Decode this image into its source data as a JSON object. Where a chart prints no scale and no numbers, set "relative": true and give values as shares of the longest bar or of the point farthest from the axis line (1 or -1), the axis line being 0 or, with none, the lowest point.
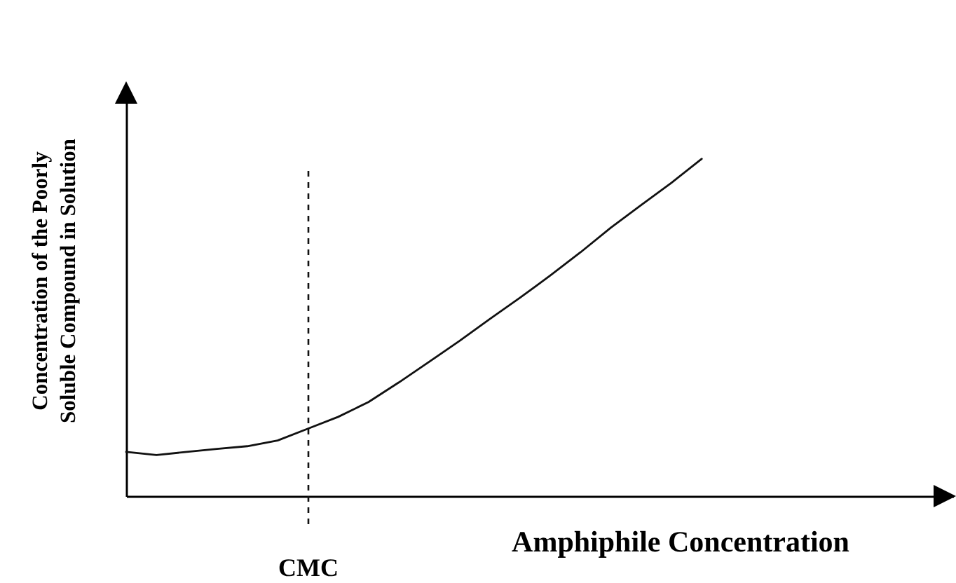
{
  "chart_data": {
    "type": "line",
    "relative": true,
    "xlabel": "Amphiphile Concentration",
    "ylabel": "Concentration of the Poorly Soluble Compound in Solution",
    "categories": [
      null,
      null,
      null,
      null,
      null,
      null,
      null,
      null,
      null,
      null,
      null,
      null,
      null,
      null,
      null,
      null,
      null,
      null,
      null,
      null
    ],
    "series": [
      {
        "color": "#111111",
        "values": [
          0.131,
          0.122,
          0.131,
          0.14,
          0.148,
          0.165,
          0.2,
          0.235,
          0.279,
          0.337,
          0.398,
          0.46,
          0.525,
          0.588,
          0.654,
          0.723,
          0.796,
          0.863,
          0.929,
          1
        ]
      }
    ],
    "annotations": [
      "CMC"
    ],
    "grid": false,
    "legend": false,
    "marker": "none",
    "line_style": "solid"
  }
}
